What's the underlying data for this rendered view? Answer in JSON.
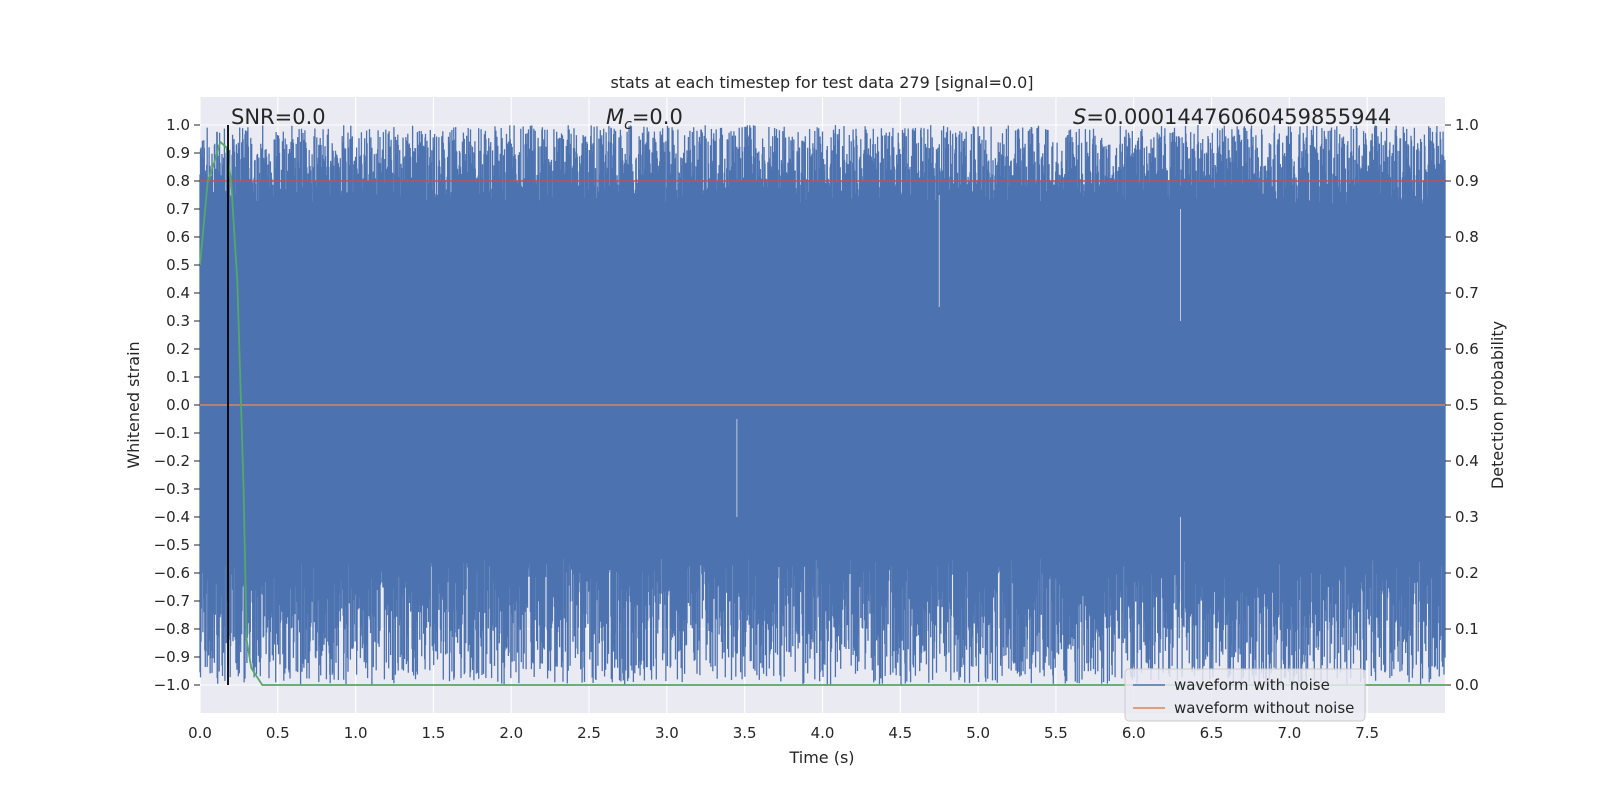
{
  "chart_data": {
    "type": "line",
    "title": "stats at each timestep for test data 279 [signal=0.0]",
    "xlabel": "Time (s)",
    "ylabel_left": "Whitened strain",
    "ylabel_right": "Detection probability",
    "xlim": [
      0.0,
      8.0
    ],
    "ylim_left": [
      -1.1,
      1.1
    ],
    "ylim_right": [
      -0.05,
      1.05
    ],
    "x_ticks": [
      "0.0",
      "0.5",
      "1.0",
      "1.5",
      "2.0",
      "2.5",
      "3.0",
      "3.5",
      "4.0",
      "4.5",
      "5.0",
      "5.5",
      "6.0",
      "6.5",
      "7.0",
      "7.5"
    ],
    "y_ticks_left": [
      "1.0",
      "0.9",
      "0.8",
      "0.7",
      "0.6",
      "0.5",
      "0.4",
      "0.3",
      "0.2",
      "0.1",
      "0.0",
      "−0.1",
      "−0.2",
      "−0.3",
      "−0.4",
      "−0.5",
      "−0.6",
      "−0.7",
      "−0.8",
      "−0.9",
      "−1.0"
    ],
    "y_ticks_right": [
      "1.0",
      "0.9",
      "0.8",
      "0.7",
      "0.6",
      "0.5",
      "0.4",
      "0.3",
      "0.2",
      "0.1",
      "0.0"
    ],
    "grid": true,
    "legend_position": "lower-right",
    "annotations": {
      "snr_text": "SNR=0.0",
      "mc_symbol": "M",
      "mc_subscript": "c",
      "mc_value": "=0.0",
      "s_symbol": "S",
      "s_value": "=0.00014476060459855944"
    },
    "series": [
      {
        "name": "waveform with noise",
        "color": "#4c72b0",
        "description_values": "dense noise spanning approximately -1.0 to 1.0 over 0–8 s"
      },
      {
        "name": "waveform without noise",
        "color": "#dd8452",
        "x": [
          0.0,
          8.0
        ],
        "y": [
          0.0,
          0.0
        ]
      },
      {
        "color": "#55a868",
        "axis": "right",
        "x": [
          0.0,
          0.05,
          0.1,
          0.13,
          0.17,
          0.2,
          0.24,
          0.28,
          0.3,
          0.33,
          0.4,
          1.0,
          8.0
        ],
        "y": [
          0.75,
          0.9,
          0.94,
          0.97,
          0.96,
          0.9,
          0.72,
          0.35,
          0.08,
          0.03,
          0.0,
          0.0,
          0.0
        ]
      },
      {
        "color": "#c44e52",
        "axis": "right",
        "x": [
          0.0,
          8.0
        ],
        "y": [
          0.9,
          0.9
        ]
      }
    ],
    "vertical_line": {
      "x": 0.18,
      "color": "#000000"
    },
    "colors": {
      "plot_bg": "#eaeaf2",
      "grid": "#ffffff",
      "noise": "#4c72b0"
    }
  }
}
